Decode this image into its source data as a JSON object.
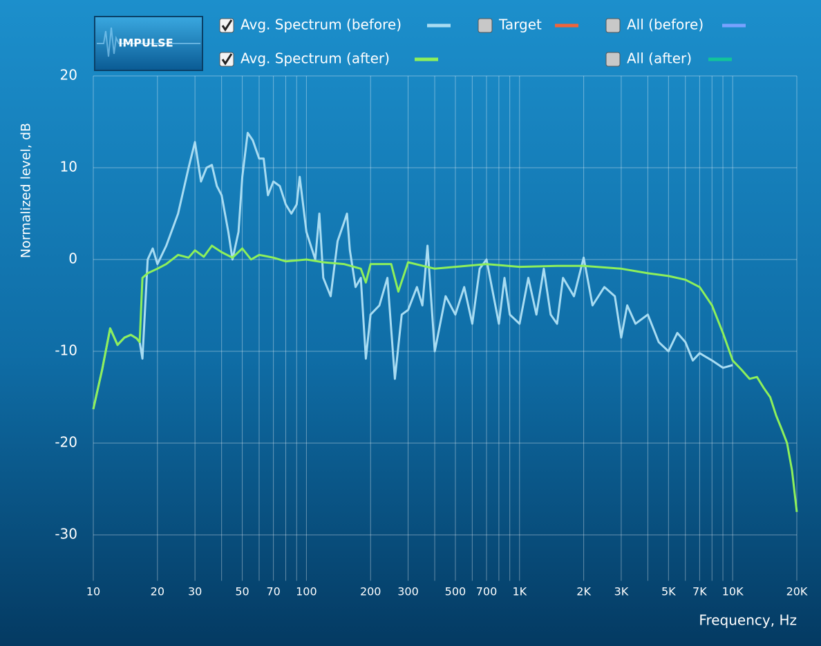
{
  "chart_data": {
    "type": "line",
    "button_label": "IMPULSE",
    "ylabel": "Normalized level, dB",
    "xlabel": "Frequency, Hz",
    "xscale": "log",
    "grid": true,
    "xlim": [
      10,
      20000
    ],
    "ylim": [
      -35,
      20
    ],
    "yticks": [
      -30,
      -20,
      -10,
      0,
      10,
      20
    ],
    "xticks": [
      10,
      20,
      30,
      50,
      70,
      100,
      200,
      300,
      500,
      700,
      {
        "value": 1000,
        "label": "1K"
      },
      {
        "value": 2000,
        "label": "2K"
      },
      {
        "value": 3000,
        "label": "3K"
      },
      {
        "value": 5000,
        "label": "5K"
      },
      {
        "value": 7000,
        "label": "7K"
      },
      {
        "value": 10000,
        "label": "10K"
      },
      {
        "value": 20000,
        "label": "20K"
      }
    ],
    "xminor": [
      40,
      60,
      80,
      90,
      400,
      600,
      800,
      900,
      4000,
      6000,
      8000,
      9000
    ],
    "series": [
      {
        "name": "Avg. Spectrum (before)",
        "color": "#a8dcf2",
        "checked": true,
        "x": [
          10,
          11,
          12,
          13,
          14,
          15,
          16,
          16.5,
          17,
          18,
          19,
          20,
          22,
          25,
          28,
          30,
          32,
          34,
          36,
          38,
          40,
          43,
          45,
          48,
          50,
          53,
          56,
          60,
          63,
          66,
          70,
          75,
          80,
          85,
          90,
          93,
          100,
          110,
          115,
          120,
          130,
          140,
          150,
          155,
          160,
          170,
          180,
          190,
          200,
          220,
          240,
          260,
          280,
          300,
          330,
          350,
          370,
          400,
          450,
          500,
          550,
          600,
          650,
          700,
          800,
          850,
          900,
          1000,
          1100,
          1200,
          1300,
          1400,
          1500,
          1600,
          1800,
          2000,
          2200,
          2500,
          2800,
          3000,
          3200,
          3500,
          4000,
          4500,
          5000,
          5500,
          6000,
          6500,
          7000,
          8000,
          9000,
          10000
        ],
        "values": [
          -16.3,
          -12,
          -7.5,
          -9.3,
          -8.5,
          -8.2,
          -8.6,
          -9,
          -10.8,
          0,
          1.2,
          -0.5,
          1.5,
          5,
          10,
          12.8,
          8.5,
          10,
          10.3,
          8,
          7,
          3,
          0,
          3,
          9,
          13.8,
          13,
          11,
          11,
          7,
          8.5,
          8,
          6,
          5,
          6,
          9,
          3,
          0,
          5,
          -2,
          -4,
          2,
          4,
          5,
          1,
          -3,
          -2,
          -10.8,
          -6,
          -5,
          -2,
          -13,
          -6,
          -5.5,
          -3,
          -5,
          1.5,
          -10,
          -4,
          -6,
          -3,
          -7,
          -1,
          0,
          -7,
          -2,
          -6,
          -7,
          -2,
          -6,
          -1,
          -6,
          -7,
          -2,
          -4,
          0.2,
          -5,
          -3,
          -4,
          -8.5,
          -5,
          -7,
          -6,
          -9,
          -10,
          -8,
          -9,
          -11,
          -10.2,
          -11,
          -11.8,
          -11.5
        ]
      },
      {
        "name": "Avg. Spectrum (after)",
        "color": "#8ef05a",
        "checked": true,
        "x": [
          10,
          11,
          12,
          13,
          14,
          15,
          16,
          16.5,
          17,
          18,
          20,
          22,
          25,
          28,
          30,
          33,
          36,
          40,
          45,
          50,
          55,
          60,
          70,
          80,
          100,
          120,
          150,
          180,
          190,
          200,
          250,
          270,
          300,
          400,
          500,
          700,
          1000,
          1500,
          2000,
          3000,
          4000,
          5000,
          6000,
          7000,
          8000,
          9000,
          10000,
          11000,
          12000,
          13000,
          14000,
          15000,
          16000,
          17000,
          18000,
          19000,
          20000
        ],
        "values": [
          -16.3,
          -12,
          -7.5,
          -9.3,
          -8.5,
          -8.2,
          -8.6,
          -9,
          -2,
          -1.5,
          -1,
          -0.5,
          0.5,
          0.2,
          1,
          0.3,
          1.5,
          0.8,
          0.2,
          1.2,
          0,
          0.5,
          0.2,
          -0.2,
          0,
          -0.3,
          -0.5,
          -1,
          -2.5,
          -0.5,
          -0.5,
          -3.5,
          -0.3,
          -1,
          -0.8,
          -0.5,
          -0.8,
          -0.7,
          -0.7,
          -1,
          -1.5,
          -1.8,
          -2.2,
          -3,
          -5,
          -8,
          -11,
          -12,
          -13,
          -12.8,
          -14,
          -15,
          -17,
          -18.5,
          -20,
          -23,
          -27.5
        ]
      },
      {
        "name": "Target",
        "color": "#f0643a",
        "checked": false
      },
      {
        "name": "All (before)",
        "color": "#78a2ff",
        "checked": false
      },
      {
        "name": "All (after)",
        "color": "#12c49a",
        "checked": false
      }
    ]
  }
}
